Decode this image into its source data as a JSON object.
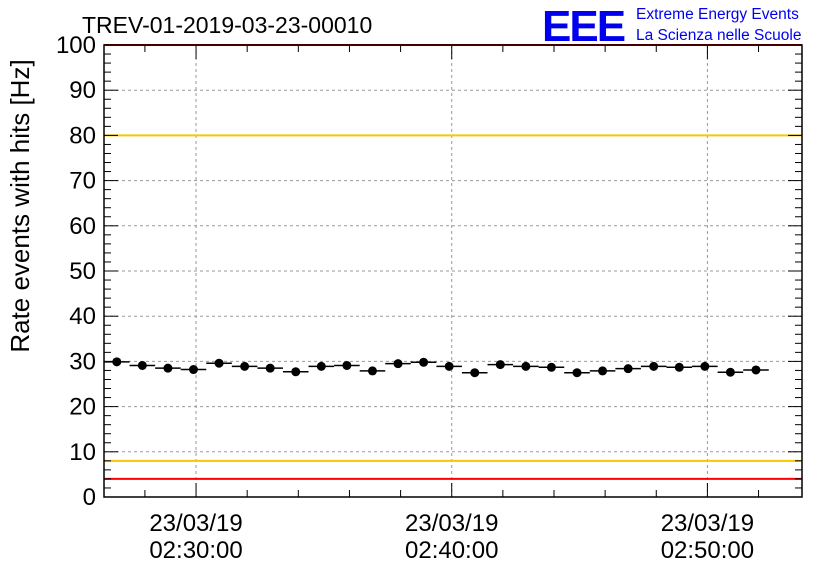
{
  "chart_data": {
    "type": "scatter",
    "title": "TREV-01-2019-03-23-00010",
    "ylabel": "Rate events with hits [Hz]",
    "xlabel": "",
    "ylim": [
      0,
      100
    ],
    "y_ticks": [
      "0",
      "10",
      "20",
      "30",
      "40",
      "50",
      "60",
      "70",
      "80",
      "90",
      "100"
    ],
    "x_range_minutes": [
      26.4,
      53.7
    ],
    "x_ticks": [
      {
        "minute": 30,
        "date": "23/03/19",
        "time": "02:30:00"
      },
      {
        "minute": 40,
        "date": "23/03/19",
        "time": "02:40:00"
      },
      {
        "minute": 50,
        "date": "23/03/19",
        "time": "02:50:00"
      }
    ],
    "x_bin_halfwidth_minutes": 0.5,
    "points": [
      {
        "x": 26.9,
        "y": 29.9,
        "yerr": 0.4
      },
      {
        "x": 27.9,
        "y": 29.1,
        "yerr": 0.4
      },
      {
        "x": 28.9,
        "y": 28.5,
        "yerr": 0.4
      },
      {
        "x": 29.9,
        "y": 28.2,
        "yerr": 0.4
      },
      {
        "x": 30.9,
        "y": 29.6,
        "yerr": 0.4
      },
      {
        "x": 31.9,
        "y": 28.9,
        "yerr": 0.4
      },
      {
        "x": 32.9,
        "y": 28.5,
        "yerr": 0.4
      },
      {
        "x": 33.9,
        "y": 27.7,
        "yerr": 0.4
      },
      {
        "x": 34.9,
        "y": 28.9,
        "yerr": 0.4
      },
      {
        "x": 35.9,
        "y": 29.1,
        "yerr": 0.4
      },
      {
        "x": 36.9,
        "y": 27.9,
        "yerr": 0.4
      },
      {
        "x": 37.9,
        "y": 29.5,
        "yerr": 0.4
      },
      {
        "x": 38.9,
        "y": 29.8,
        "yerr": 0.4
      },
      {
        "x": 39.9,
        "y": 28.9,
        "yerr": 0.4
      },
      {
        "x": 40.9,
        "y": 27.5,
        "yerr": 0.4
      },
      {
        "x": 41.9,
        "y": 29.3,
        "yerr": 0.4
      },
      {
        "x": 42.9,
        "y": 28.9,
        "yerr": 0.4
      },
      {
        "x": 43.9,
        "y": 28.7,
        "yerr": 0.4
      },
      {
        "x": 44.9,
        "y": 27.5,
        "yerr": 0.4
      },
      {
        "x": 45.9,
        "y": 27.9,
        "yerr": 0.4
      },
      {
        "x": 46.9,
        "y": 28.4,
        "yerr": 0.4
      },
      {
        "x": 47.9,
        "y": 28.9,
        "yerr": 0.4
      },
      {
        "x": 48.9,
        "y": 28.7,
        "yerr": 0.4
      },
      {
        "x": 49.9,
        "y": 28.9,
        "yerr": 0.4
      },
      {
        "x": 50.9,
        "y": 27.6,
        "yerr": 0.4
      },
      {
        "x": 51.9,
        "y": 28.1,
        "yerr": 0.4
      }
    ],
    "threshold_lines": [
      {
        "name": "upper-red-line",
        "y": 100,
        "color": "#ff0000"
      },
      {
        "name": "upper-yellow-line",
        "y": 80,
        "color": "#f5c800"
      },
      {
        "name": "lower-yellow-line",
        "y": 8,
        "color": "#f5c800"
      },
      {
        "name": "lower-red-line",
        "y": 4,
        "color": "#ff0000"
      }
    ],
    "grid": true,
    "marker_color": "#000000"
  },
  "logo": {
    "mark": "EEE",
    "line1": "Extreme Energy Events",
    "line2": "La Scienza nelle Scuole",
    "color": "#0000ee"
  }
}
